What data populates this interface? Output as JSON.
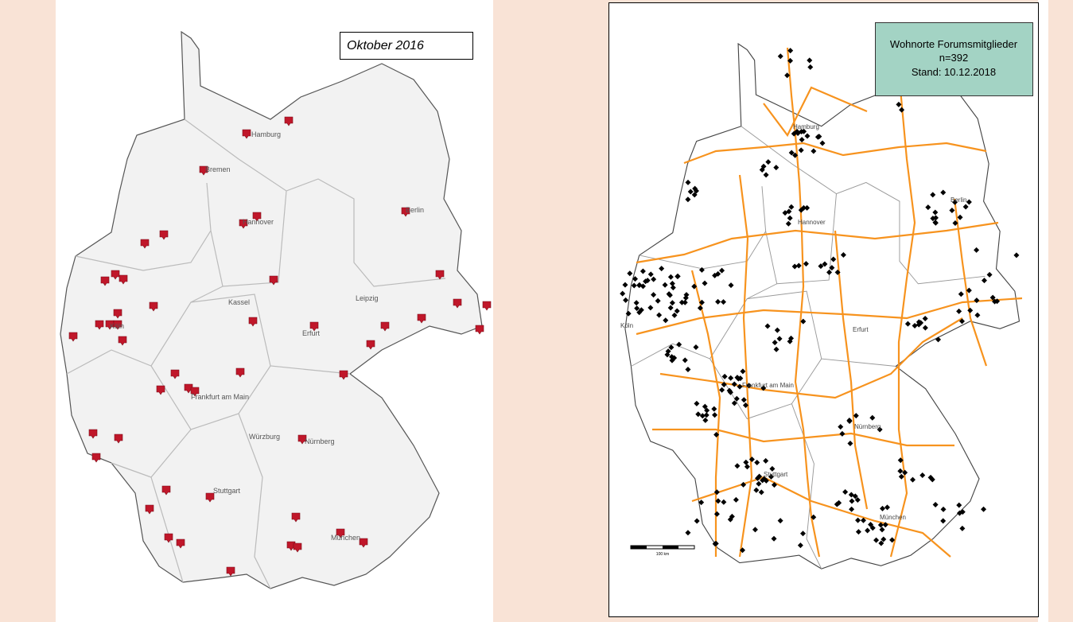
{
  "left_map": {
    "title": "Oktober 2016",
    "cities": [
      "Hamburg",
      "Bremen",
      "Hannover",
      "Berlin",
      "Kassel",
      "Leipzig",
      "Köln",
      "Erfurt",
      "Frankfurt am Main",
      "Würzburg",
      "Nürnberg",
      "Stuttgart",
      "München"
    ]
  },
  "right_map": {
    "legend": {
      "title": "Wohnorte Forumsmitglieder",
      "count": "n=392",
      "date": "Stand: 10.12.2018"
    },
    "cities": [
      "Hamburg",
      "Hannover",
      "Berlin",
      "Köln",
      "Erfurt",
      "Frankfurt am Main",
      "Nürnberg",
      "Stuttgart",
      "München"
    ],
    "scale_label": "100 km"
  }
}
